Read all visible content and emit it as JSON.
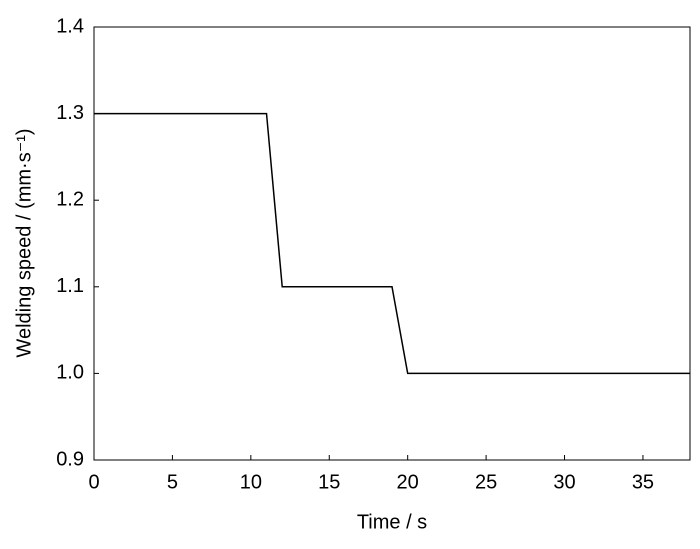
{
  "chart_data": {
    "type": "line",
    "xlabel": "Time / s",
    "ylabel": "Welding speed / (mm·s⁻¹)",
    "x": [
      0,
      11,
      12,
      19,
      20,
      38
    ],
    "values": [
      1.3,
      1.3,
      1.1,
      1.1,
      1.0,
      1.0
    ],
    "color": "#000000",
    "xlim": [
      0,
      38
    ],
    "xticks": [
      0,
      5,
      10,
      15,
      20,
      25,
      30,
      35
    ],
    "ylim": [
      0.9,
      1.4
    ],
    "yticks": [
      0.9,
      {
        "value": 1.0,
        "label": "1.0"
      },
      1.1,
      1.2,
      1.3,
      1.4
    ],
    "grid": false
  }
}
